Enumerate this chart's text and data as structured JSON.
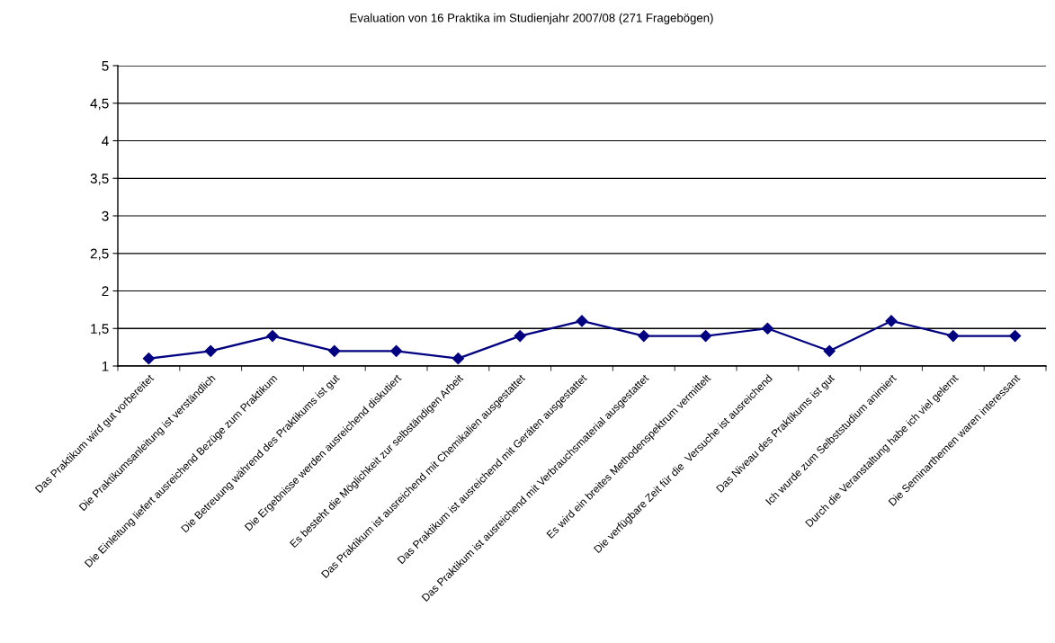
{
  "chart_data": {
    "type": "line",
    "title": "Evaluation von 16 Praktika im Studienjahr 2007/08 (271 Fragebögen)",
    "categories": [
      "Das Praktikum wird gut vorbereitet",
      "Die Praktikumsanleitung ist verständlich",
      "Die Einleitung liefert ausreichend Bezüge zum Praktikum",
      "Die Betreuung während des Praktikums ist gut",
      "Die Ergebnisse werden ausreichend diskutiert",
      "Es besteht die Möglichkeit zur selbständigen Arbeit",
      "Das Praktikum ist ausreichend mit Chemikalien ausgestattet",
      "Das Praktikum ist ausreichend mit Geräten ausgestattet",
      "Das Praktikum ist ausreichend mit Verbrauchsmaterial ausgestattet",
      "Es wird ein breites Methodenspektrum vermittelt",
      "Die verfügbare Zeit für die  Versuche ist ausreichend",
      "Das Niveau des Praktikums ist gut",
      "Ich wurde zum Selbststudium animiert",
      "Durch die Veranstaltung habe ich viel gelernt",
      "Die Seminarthemen waren interessant"
    ],
    "series": [
      {
        "color": "#000080",
        "values": [
          1.1,
          1.2,
          1.4,
          1.2,
          1.2,
          1.1,
          1.4,
          1.6,
          1.4,
          1.4,
          1.5,
          1.2,
          1.6,
          1.4,
          1.4
        ]
      }
    ],
    "ylim": [
      1,
      5
    ],
    "yticks": [
      1,
      {
        "value": 1.5,
        "label": "1,5"
      },
      2,
      {
        "value": 2.5,
        "label": "2,5"
      },
      3,
      {
        "value": 3.5,
        "label": "3,5"
      },
      4,
      {
        "value": 4.5,
        "label": "4,5"
      },
      5
    ],
    "grid": "y",
    "marker": "diamond",
    "line_style": "solid"
  }
}
